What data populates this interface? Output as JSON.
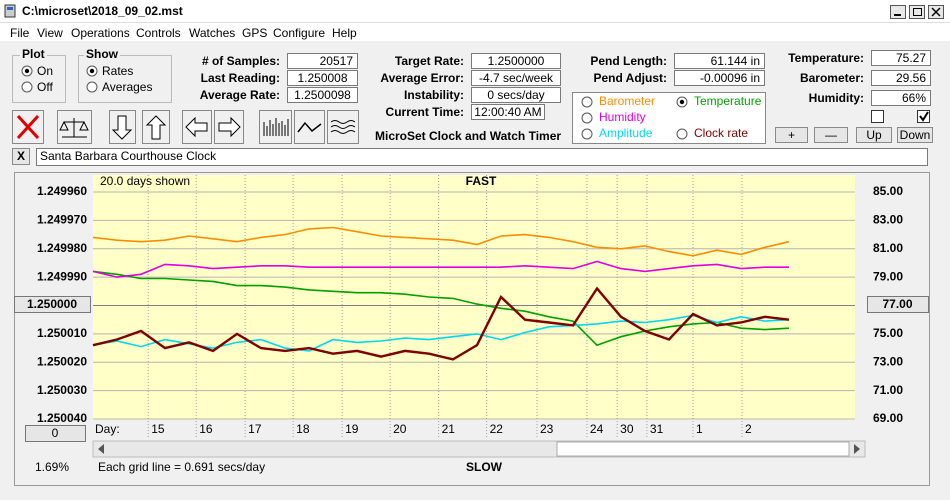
{
  "window": {
    "title": "C:\\microset\\2018_09_02.mst",
    "menu": [
      "File",
      "View",
      "Operations",
      "Controls",
      "Watches",
      "GPS",
      "Configure",
      "Help"
    ]
  },
  "controls": {
    "plot": {
      "label": "Plot",
      "options": [
        "On",
        "Off"
      ],
      "checked_index": 0
    },
    "show": {
      "label": "Show",
      "options": [
        "Rates",
        "Averages"
      ],
      "checked_index": 0
    },
    "samples_panel": [
      {
        "label": "# of Samples:",
        "value": "20517"
      },
      {
        "label": "Last Reading:",
        "value": "1.250008"
      },
      {
        "label": "Average Rate:",
        "value": "1.2500098"
      }
    ],
    "timing_panel": [
      {
        "label": "Target Rate:",
        "value": "1.2500000"
      },
      {
        "label": "Average Error:",
        "value": "-4.7 sec/week"
      },
      {
        "label": "Instability:",
        "value": "0 secs/day"
      },
      {
        "label": "Current Time:",
        "value": "12:00:40 AM"
      }
    ],
    "pend_panel": [
      {
        "label": "Pend Length:",
        "value": "61.144 in"
      },
      {
        "label": "Pend Adjust:",
        "value": "-0.00096 in"
      }
    ],
    "env_panel": [
      {
        "label": "Temperature:",
        "value": "75.27"
      },
      {
        "label": "Barometer:",
        "value": "29.56"
      },
      {
        "label": "Humidity:",
        "value": "66%"
      }
    ],
    "env_checks": [
      false,
      true
    ],
    "app_title": "MicroSet Clock and Watch Timer",
    "buttons": [
      "+",
      "—",
      "Up",
      "Down"
    ],
    "close_label": "X",
    "clock_name": "Santa Barbara Courthouse Clock"
  },
  "chart_data": {
    "type": "line",
    "top_label": "FAST",
    "bottom_label": "SLOW",
    "span_label": "20.0 days shown",
    "x_label": "Day:",
    "grid_note": "Each grid line = 0.691 secs/day",
    "percent_label": "1.69%",
    "center_left": "1.250000",
    "center_right": "77.00",
    "scroll_value": "0",
    "xlim": [
      0,
      15.875
    ],
    "xticks": [
      {
        "value": 1.15,
        "label": "15"
      },
      {
        "value": 2.15,
        "label": "16"
      },
      {
        "value": 3.17,
        "label": "17"
      },
      {
        "value": 4.17,
        "label": "18"
      },
      {
        "value": 5.19,
        "label": "19"
      },
      {
        "value": 6.19,
        "label": "20"
      },
      {
        "value": 7.2,
        "label": "21"
      },
      {
        "value": 8.2,
        "label": "22"
      },
      {
        "value": 9.25,
        "label": "23"
      },
      {
        "value": 10.29,
        "label": "24"
      },
      {
        "value": 10.92,
        "label": "30"
      },
      {
        "value": 11.54,
        "label": "31"
      },
      {
        "value": 12.5,
        "label": "1"
      },
      {
        "value": 13.52,
        "label": "2"
      }
    ],
    "ylim": [
      1.25004,
      1.24996
    ],
    "yticks": [
      {
        "value": 1.24996,
        "label": "1.249960"
      },
      {
        "value": 1.24997,
        "label": "1.249970"
      },
      {
        "value": 1.24998,
        "label": "1.249980"
      },
      {
        "value": 1.24999,
        "label": "1.249990"
      },
      {
        "value": 1.25,
        "label": "1.250000"
      },
      {
        "value": 1.25001,
        "label": "1.250010"
      },
      {
        "value": 1.25002,
        "label": "1.250020"
      },
      {
        "value": 1.25003,
        "label": "1.250030"
      },
      {
        "value": 1.25004,
        "label": "1.250040"
      }
    ],
    "y2lim": [
      69,
      85
    ],
    "y2ticks": [
      {
        "value": 85,
        "label": "85.00"
      },
      {
        "value": 83,
        "label": "83.00"
      },
      {
        "value": 81,
        "label": "81.00"
      },
      {
        "value": 79,
        "label": "79.00"
      },
      {
        "value": 77,
        "label": "77.00"
      },
      {
        "value": 75,
        "label": "75.00"
      },
      {
        "value": 73,
        "label": "73.00"
      },
      {
        "value": 71,
        "label": "71.00"
      },
      {
        "value": 69,
        "label": "69.00"
      }
    ],
    "grid": true,
    "x": [
      0,
      0.5,
      1,
      1.5,
      2,
      2.5,
      3,
      3.5,
      4,
      4.5,
      5,
      5.5,
      6,
      6.5,
      7,
      7.5,
      8,
      8.5,
      9,
      9.5,
      10,
      10.5,
      11,
      11.5,
      12,
      12.5,
      13,
      13.5,
      14,
      14.5
    ],
    "series": [
      {
        "name": "Barometer",
        "color": "#ff8c00",
        "axis": "y2",
        "selected": false,
        "values": [
          81.8,
          81.6,
          81.5,
          81.6,
          81.9,
          81.7,
          81.5,
          81.8,
          82.0,
          82.4,
          82.5,
          82.2,
          81.9,
          81.8,
          81.7,
          81.6,
          81.3,
          81.9,
          82.0,
          81.8,
          81.5,
          81.1,
          81.0,
          81.2,
          80.8,
          80.5,
          80.9,
          80.6,
          81.1,
          81.5
        ]
      },
      {
        "name": "Temperature",
        "color": "#00a000",
        "axis": "y2",
        "selected": true,
        "values": [
          79.4,
          79.2,
          78.9,
          78.9,
          78.8,
          78.7,
          78.4,
          78.4,
          78.3,
          78.1,
          78.0,
          77.9,
          77.9,
          77.8,
          77.6,
          77.5,
          77.1,
          76.8,
          76.6,
          76.2,
          75.9,
          74.2,
          74.8,
          75.2,
          75.5,
          75.7,
          75.8,
          75.4,
          75.3,
          75.4
        ]
      },
      {
        "name": "Humidity",
        "color": "#e000e0",
        "axis": "y2",
        "selected": false,
        "values": [
          79.4,
          79.0,
          79.2,
          79.9,
          79.8,
          79.6,
          79.7,
          79.8,
          79.8,
          79.7,
          79.7,
          79.7,
          79.7,
          79.7,
          79.7,
          79.7,
          79.7,
          79.7,
          79.8,
          79.7,
          79.6,
          80.1,
          79.6,
          79.4,
          79.6,
          79.8,
          79.9,
          79.6,
          79.7,
          79.7
        ]
      },
      {
        "name": "Amplitude",
        "color": "#00d8f0",
        "axis": "y2",
        "selected": false,
        "values": [
          74.2,
          74.5,
          74.1,
          74.6,
          74.3,
          74.0,
          74.4,
          74.6,
          74.0,
          73.8,
          74.6,
          74.4,
          74.5,
          74.7,
          74.6,
          74.8,
          75.0,
          74.6,
          75.1,
          75.5,
          75.6,
          75.7,
          75.9,
          75.8,
          76.0,
          76.3,
          75.8,
          76.2,
          75.9,
          76.0
        ]
      },
      {
        "name": "Clock rate",
        "color": "#800000",
        "selected": false,
        "values": [
          1.250014,
          1.250012,
          1.250009,
          1.250015,
          1.250013,
          1.250016,
          1.25001,
          1.250015,
          1.250016,
          1.250015,
          1.250017,
          1.250016,
          1.250018,
          1.250016,
          1.250017,
          1.250019,
          1.250014,
          1.249997,
          1.250005,
          1.250006,
          1.250007,
          1.249994,
          1.250004,
          1.250009,
          1.250012,
          1.250003,
          1.250007,
          1.250006,
          1.250004,
          1.250005
        ]
      }
    ]
  }
}
